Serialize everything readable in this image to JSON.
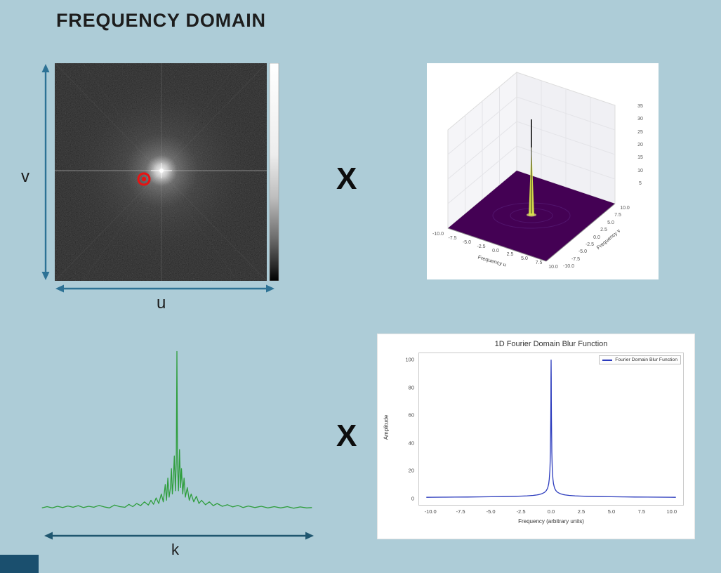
{
  "slide": {
    "title": "FREQUENCY DOMAIN",
    "multiply_symbol": "X",
    "background_color": "#adccd7",
    "axis_arrow_color": "#2d7295",
    "k_arrow_color": "#1f566f",
    "corner_bar_color": "#1a4f6e"
  },
  "fft_panel": {
    "v_label": "v",
    "u_label": "u",
    "marker_color": "#e81212"
  },
  "surface_plot": {
    "xlabel": "Frequency u",
    "ylabel": "Frequency v",
    "x_ticks": [
      "-10.0",
      "-7.5",
      "-5.0",
      "-2.5",
      "0.0",
      "2.5",
      "5.0",
      "7.5",
      "10.0"
    ],
    "y_ticks": [
      "-10.0",
      "-7.5",
      "-5.0",
      "-2.5",
      "0.0",
      "2.5",
      "5.0",
      "7.5",
      "10.0"
    ],
    "z_ticks": [
      "5",
      "10",
      "15",
      "20",
      "25",
      "30",
      "35"
    ],
    "surface_color": "#440154",
    "spike_color": "#d8e34a"
  },
  "chart_data": [
    {
      "id": "green-spectrum",
      "type": "line",
      "title": "",
      "xlabel": "k",
      "line_color": "#2f9e3d",
      "xlim": [
        -10.6,
        10.6
      ],
      "ylim": [
        0,
        1.1
      ],
      "points": [
        [
          -10.4,
          0.012
        ],
        [
          -10,
          0.02
        ],
        [
          -9.6,
          0.012
        ],
        [
          -9.2,
          0.022
        ],
        [
          -8.8,
          0.014
        ],
        [
          -8.4,
          0.024
        ],
        [
          -8,
          0.016
        ],
        [
          -7.6,
          0.026
        ],
        [
          -7.2,
          0.014
        ],
        [
          -6.8,
          0.022
        ],
        [
          -6.4,
          0.016
        ],
        [
          -6,
          0.028
        ],
        [
          -5.6,
          0.018
        ],
        [
          -5.2,
          0.012
        ],
        [
          -4.8,
          0.03
        ],
        [
          -4.4,
          0.02
        ],
        [
          -4,
          0.016
        ],
        [
          -3.7,
          0.034
        ],
        [
          -3.4,
          0.02
        ],
        [
          -3.1,
          0.04
        ],
        [
          -2.8,
          0.026
        ],
        [
          -2.5,
          0.05
        ],
        [
          -2.2,
          0.03
        ],
        [
          -2,
          0.06
        ],
        [
          -1.8,
          0.035
        ],
        [
          -1.6,
          0.075
        ],
        [
          -1.4,
          0.04
        ],
        [
          -1.2,
          0.1
        ],
        [
          -1.05,
          0.05
        ],
        [
          -0.9,
          0.16
        ],
        [
          -0.8,
          0.06
        ],
        [
          -0.7,
          0.2
        ],
        [
          -0.6,
          0.08
        ],
        [
          -0.5,
          0.14
        ],
        [
          -0.42,
          0.26
        ],
        [
          -0.35,
          0.1
        ],
        [
          -0.28,
          0.18
        ],
        [
          -0.2,
          0.34
        ],
        [
          -0.12,
          0.12
        ],
        [
          -0.05,
          0.3
        ],
        [
          0,
          1.0
        ],
        [
          0.05,
          0.28
        ],
        [
          0.12,
          0.12
        ],
        [
          0.2,
          0.38
        ],
        [
          0.28,
          0.14
        ],
        [
          0.35,
          0.26
        ],
        [
          0.45,
          0.1
        ],
        [
          0.55,
          0.2
        ],
        [
          0.65,
          0.08
        ],
        [
          0.8,
          0.14
        ],
        [
          0.95,
          0.06
        ],
        [
          1.1,
          0.1
        ],
        [
          1.3,
          0.05
        ],
        [
          1.5,
          0.085
        ],
        [
          1.7,
          0.04
        ],
        [
          1.9,
          0.06
        ],
        [
          2.2,
          0.032
        ],
        [
          2.5,
          0.05
        ],
        [
          2.8,
          0.026
        ],
        [
          3.1,
          0.04
        ],
        [
          3.5,
          0.022
        ],
        [
          3.9,
          0.032
        ],
        [
          4.3,
          0.018
        ],
        [
          4.7,
          0.028
        ],
        [
          5.1,
          0.014
        ],
        [
          5.5,
          0.024
        ],
        [
          6,
          0.014
        ],
        [
          6.5,
          0.022
        ],
        [
          7,
          0.012
        ],
        [
          7.5,
          0.02
        ],
        [
          8,
          0.012
        ],
        [
          8.5,
          0.02
        ],
        [
          9,
          0.01
        ],
        [
          9.5,
          0.018
        ],
        [
          10,
          0.012
        ],
        [
          10.4,
          0.014
        ]
      ]
    },
    {
      "id": "blur-function",
      "type": "line",
      "title": "1D Fourier Domain Blur Function",
      "xlabel": "Frequency (arbitrary units)",
      "ylabel": "Amplitude",
      "legend": [
        "Fourier Domain Blur Function"
      ],
      "line_color": "#2b3bbd",
      "xlim": [
        -11,
        11
      ],
      "ylim": [
        -5,
        105
      ],
      "x_ticks": [
        -10,
        -7.5,
        -5,
        -2.5,
        0,
        2.5,
        5,
        7.5,
        10
      ],
      "x_tick_labels": [
        "-10.0",
        "-7.5",
        "-5.0",
        "-2.5",
        "0.0",
        "2.5",
        "5.0",
        "7.5",
        "10.0"
      ],
      "y_ticks": [
        0,
        20,
        40,
        60,
        80,
        100
      ],
      "y_tick_labels": [
        "0",
        "20",
        "40",
        "60",
        "80",
        "100"
      ],
      "points": [
        [
          -10.4,
          0.5
        ],
        [
          -10,
          0.55
        ],
        [
          -9,
          0.6
        ],
        [
          -8,
          0.65
        ],
        [
          -7,
          0.7
        ],
        [
          -6,
          0.8
        ],
        [
          -5,
          0.9
        ],
        [
          -4,
          1.0
        ],
        [
          -3,
          1.2
        ],
        [
          -2.5,
          1.35
        ],
        [
          -2,
          1.55
        ],
        [
          -1.5,
          1.9
        ],
        [
          -1.2,
          2.2
        ],
        [
          -1,
          2.5
        ],
        [
          -0.8,
          3.0
        ],
        [
          -0.6,
          3.8
        ],
        [
          -0.5,
          4.4
        ],
        [
          -0.4,
          5.4
        ],
        [
          -0.3,
          7.0
        ],
        [
          -0.25,
          8.4
        ],
        [
          -0.2,
          10.4
        ],
        [
          -0.15,
          13.8
        ],
        [
          -0.1,
          20.5
        ],
        [
          -0.08,
          25.5
        ],
        [
          -0.06,
          33.5
        ],
        [
          -0.05,
          39.5
        ],
        [
          -0.04,
          47.5
        ],
        [
          -0.03,
          57.5
        ],
        [
          -0.02,
          71.5
        ],
        [
          -0.01,
          87.5
        ],
        [
          0,
          100
        ],
        [
          0.01,
          87.5
        ],
        [
          0.02,
          71.5
        ],
        [
          0.03,
          57.5
        ],
        [
          0.04,
          47.5
        ],
        [
          0.05,
          39.5
        ],
        [
          0.06,
          33.5
        ],
        [
          0.08,
          25.5
        ],
        [
          0.1,
          20.5
        ],
        [
          0.15,
          13.8
        ],
        [
          0.2,
          10.4
        ],
        [
          0.25,
          8.4
        ],
        [
          0.3,
          7.0
        ],
        [
          0.4,
          5.4
        ],
        [
          0.5,
          4.4
        ],
        [
          0.6,
          3.8
        ],
        [
          0.8,
          3.0
        ],
        [
          1,
          2.5
        ],
        [
          1.2,
          2.2
        ],
        [
          1.5,
          1.9
        ],
        [
          2,
          1.55
        ],
        [
          2.5,
          1.35
        ],
        [
          3,
          1.2
        ],
        [
          4,
          1.0
        ],
        [
          5,
          0.9
        ],
        [
          6,
          0.8
        ],
        [
          7,
          0.7
        ],
        [
          8,
          0.65
        ],
        [
          9,
          0.6
        ],
        [
          10,
          0.55
        ],
        [
          10.4,
          0.5
        ]
      ]
    }
  ]
}
